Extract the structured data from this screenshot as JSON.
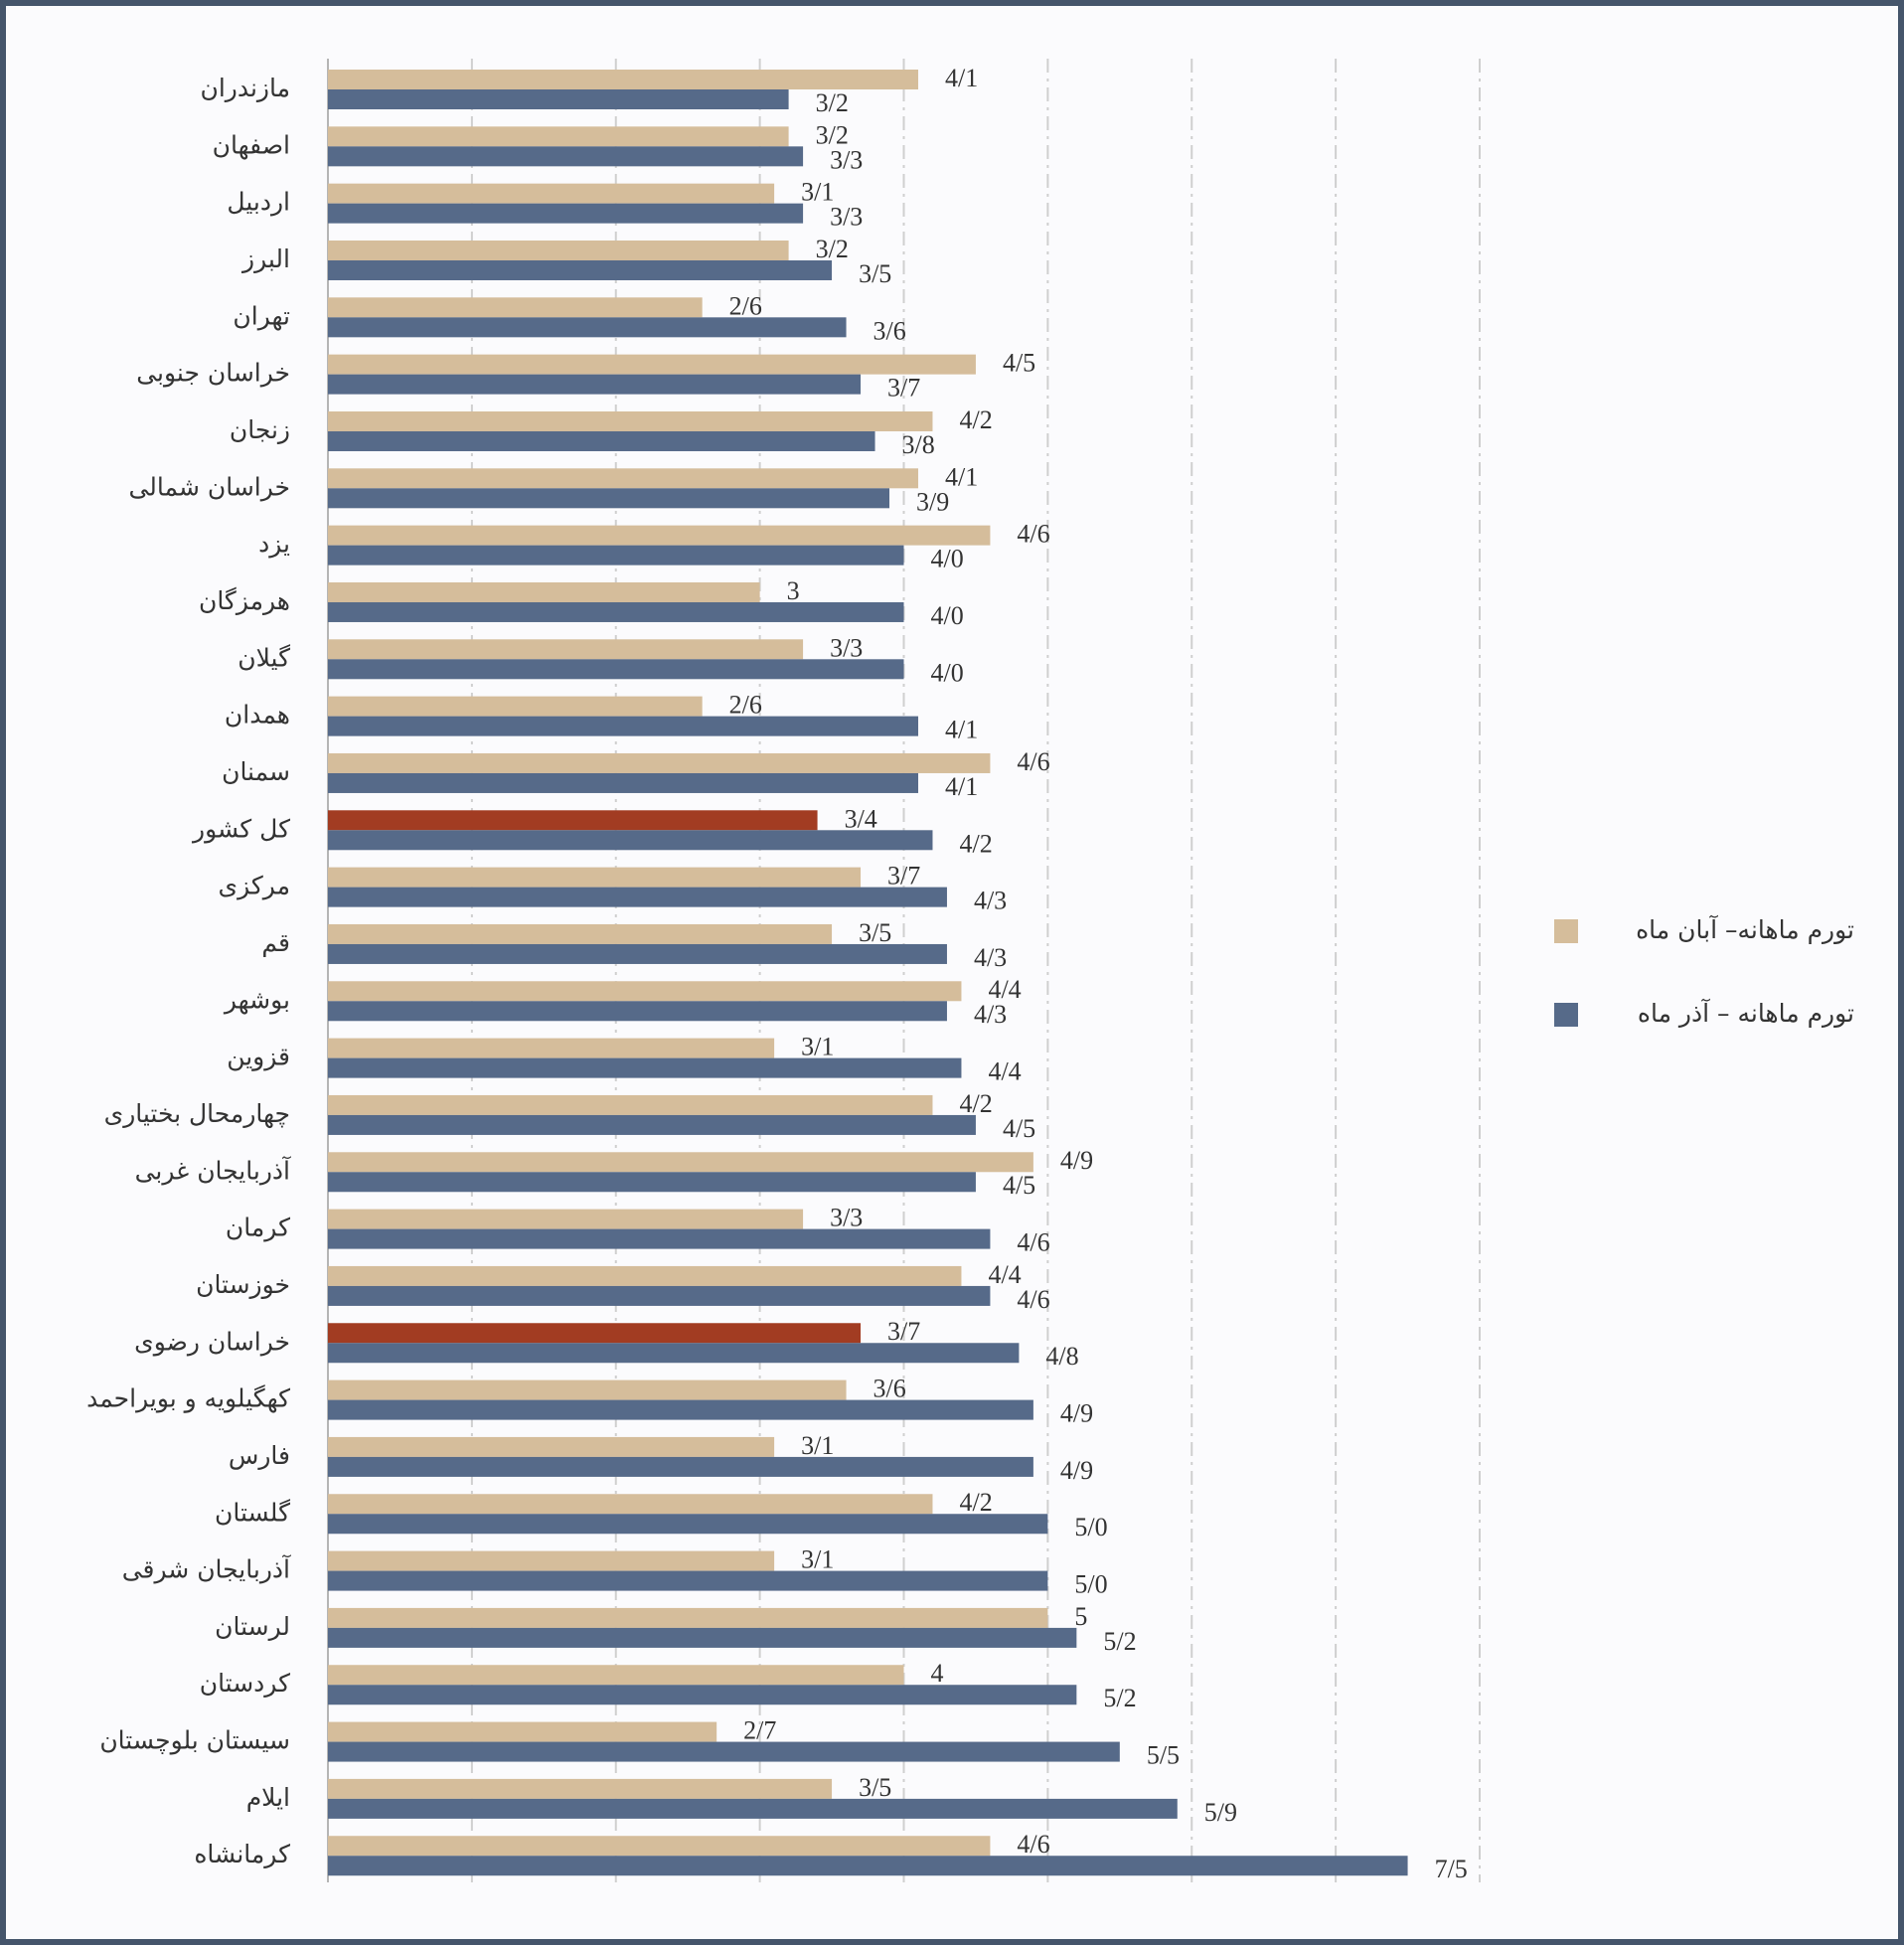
{
  "chart_data": {
    "type": "hbar",
    "categories": [
      "مازندران",
      "اصفهان",
      "اردبیل",
      "البرز",
      "تهران",
      "خراسان جنوبی",
      "زنجان",
      "خراسان شمالی",
      "یزد",
      "هرمزگان",
      "گیلان",
      "همدان",
      "سمنان",
      "کل کشور",
      "مرکزی",
      "قم",
      "بوشهر",
      "قزوین",
      "چهارمحال بختیاری",
      "آذربایجان غربی",
      "کرمان",
      "خوزستان",
      "خراسان رضوی",
      "کهگیلویه و بویراحمد",
      "فارس",
      "گلستان",
      "آذربایجان شرقی",
      "لرستان",
      "کردستان",
      "سیستان بلوچستان",
      "ایلام",
      "کرمانشاه"
    ],
    "series": [
      {
        "name": "تورم ماهانه– آبان ماه",
        "color": "#d5bd9b",
        "values": [
          4.1,
          3.2,
          3.1,
          3.2,
          2.6,
          4.5,
          4.2,
          4.1,
          4.6,
          3,
          3.3,
          2.6,
          4.6,
          3.4,
          3.7,
          3.5,
          4.4,
          3.1,
          4.2,
          4.9,
          3.3,
          4.4,
          3.7,
          3.6,
          3.1,
          4.2,
          3.1,
          5,
          4,
          2.7,
          3.5,
          4.6
        ],
        "value_labels": [
          "4/1",
          "3/2",
          "3/1",
          "3/2",
          "2/6",
          "4/5",
          "4/2",
          "4/1",
          "4/6",
          "3",
          "3/3",
          "2/6",
          "4/6",
          "3/4",
          "3/7",
          "3/5",
          "4/4",
          "3/1",
          "4/2",
          "4/9",
          "3/3",
          "4/4",
          "3/7",
          "3/6",
          "3/1",
          "4/2",
          "3/1",
          "5",
          "4",
          "2/7",
          "3/5",
          "4/6"
        ],
        "highlight": {
          "indices": [
            13,
            22
          ],
          "color": "#a23c22"
        }
      },
      {
        "name": "تورم ماهانه – آذر ماه",
        "color": "#566a89",
        "values": [
          3.2,
          3.3,
          3.3,
          3.5,
          3.6,
          3.7,
          3.8,
          3.9,
          4.0,
          4.0,
          4.0,
          4.1,
          4.1,
          4.2,
          4.3,
          4.3,
          4.3,
          4.4,
          4.5,
          4.5,
          4.6,
          4.6,
          4.8,
          4.9,
          4.9,
          5.0,
          5.0,
          5.2,
          5.2,
          5.5,
          5.9,
          7.5
        ],
        "value_labels": [
          "3/2",
          "3/3",
          "3/3",
          "3/5",
          "3/6",
          "3/7",
          "3/8",
          "3/9",
          "4/0",
          "4/0",
          "4/0",
          "4/1",
          "4/1",
          "4/2",
          "4/3",
          "4/3",
          "4/3",
          "4/4",
          "4/5",
          "4/5",
          "4/6",
          "4/6",
          "4/8",
          "4/9",
          "4/9",
          "5/0",
          "5/0",
          "5/2",
          "5/2",
          "5/5",
          "5/9",
          "7/5"
        ]
      }
    ],
    "xlim": [
      0,
      8
    ],
    "xticks": [
      0,
      1,
      2,
      3,
      4,
      5,
      6,
      7,
      8
    ],
    "grid": true,
    "legend": "right"
  }
}
